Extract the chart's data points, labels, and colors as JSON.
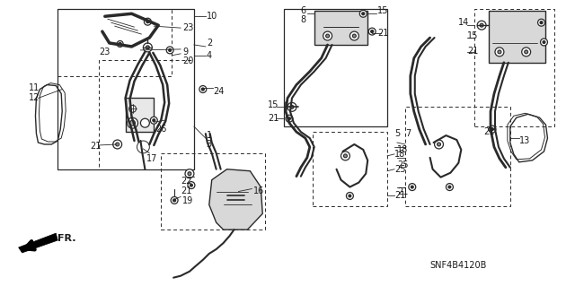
{
  "bg_color": "#ffffff",
  "line_color": "#2a2a2a",
  "text_color": "#1a1a1a",
  "watermark": "SNF4B4120B",
  "fr_label": "FR."
}
